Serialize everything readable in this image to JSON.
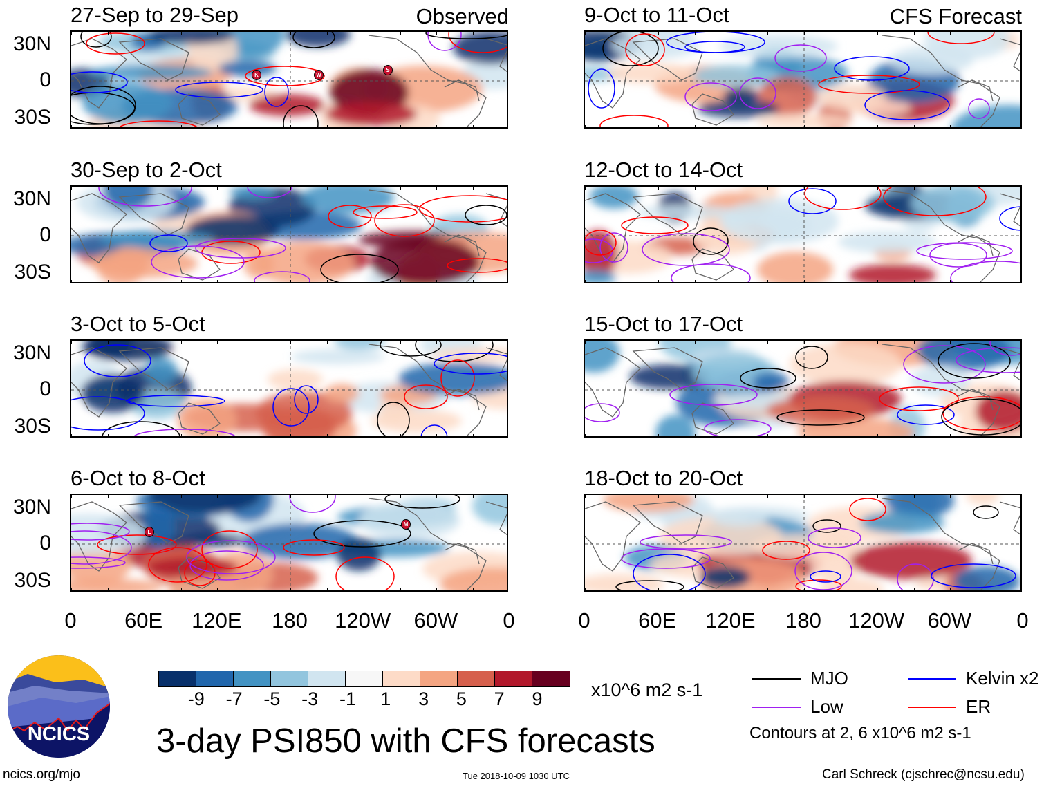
{
  "figure": {
    "title": "3-day PSI850 with CFS forecasts",
    "observed_label": "Observed",
    "forecast_label": "CFS Forecast",
    "timestamp": "Tue 2018-10-09 1030 UTC",
    "credit": "Carl Schreck (cjschrec@ncsu.edu)",
    "website": "ncics.org/mjo",
    "logo_text": "NCICS"
  },
  "panels_observed": [
    {
      "title": "27-Sep to 29-Sep",
      "storms": [
        "K",
        "W",
        "S"
      ]
    },
    {
      "title": "30-Sep to 2-Oct",
      "storms": []
    },
    {
      "title": "3-Oct to 5-Oct",
      "storms": []
    },
    {
      "title": "6-Oct to 8-Oct",
      "storms": [
        "L",
        "M"
      ]
    }
  ],
  "panels_forecast": [
    {
      "title": "9-Oct to 11-Oct"
    },
    {
      "title": "12-Oct to 14-Oct"
    },
    {
      "title": "15-Oct to 17-Oct"
    },
    {
      "title": "18-Oct to 20-Oct"
    }
  ],
  "lat_labels": [
    "30N",
    "0",
    "30S"
  ],
  "lon_labels": [
    "0",
    "60E",
    "120E",
    "180",
    "120W",
    "60W",
    "0"
  ],
  "colorbar": {
    "colors": [
      "#08306b",
      "#2166ac",
      "#4393c3",
      "#92c5de",
      "#d1e5f0",
      "#f7f7f7",
      "#fddbc7",
      "#f4a582",
      "#d6604d",
      "#b2182b",
      "#67001f"
    ],
    "ticks": [
      "-9",
      "-7",
      "-5",
      "-3",
      "-1",
      "1",
      "3",
      "5",
      "7",
      "9"
    ],
    "units": "x10^6 m2 s-1"
  },
  "legend": {
    "items": [
      {
        "label": "MJO",
        "color": "#000000"
      },
      {
        "label": "Kelvin x2",
        "color": "#0000ff"
      },
      {
        "label": "Low",
        "color": "#a020f0"
      },
      {
        "label": "ER",
        "color": "#ff0000"
      }
    ],
    "note": "Contours at 2, 6 x10^6 m2 s-1"
  }
}
